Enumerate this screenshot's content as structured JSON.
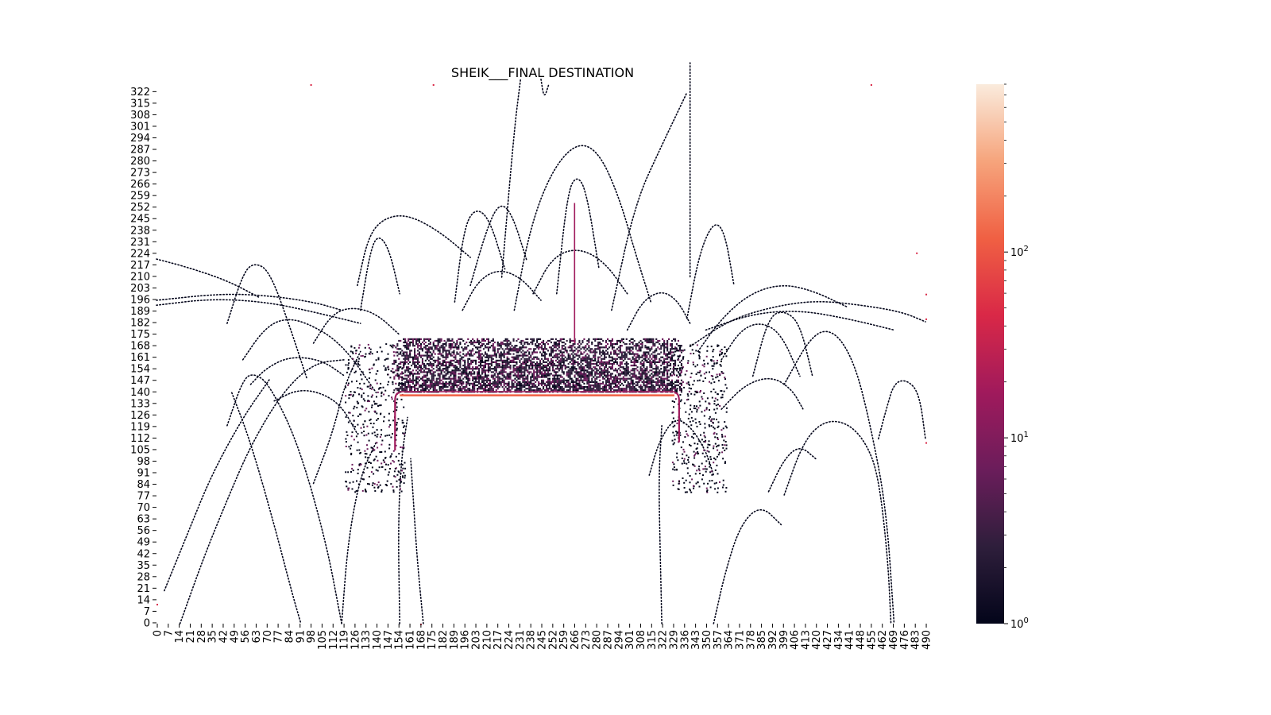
{
  "chart_data": {
    "type": "heatmap",
    "title": "SHEIK___FINAL DESTINATION",
    "x_tick_labels": [
      "0",
      "7",
      "14",
      "21",
      "28",
      "35",
      "42",
      "49",
      "56",
      "63",
      "70",
      "77",
      "84",
      "91",
      "98",
      "105",
      "112",
      "119",
      "126",
      "133",
      "140",
      "147",
      "154",
      "161",
      "168",
      "175",
      "182",
      "189",
      "196",
      "203",
      "210",
      "217",
      "224",
      "231",
      "238",
      "245",
      "252",
      "259",
      "266",
      "273",
      "280",
      "287",
      "294",
      "301",
      "308",
      "315",
      "322",
      "329",
      "336",
      "343",
      "350",
      "357",
      "364",
      "371",
      "378",
      "385",
      "392",
      "399",
      "406",
      "413",
      "420",
      "427",
      "434",
      "441",
      "448",
      "455",
      "462",
      "469",
      "476",
      "483",
      "490"
    ],
    "y_tick_labels": [
      "0",
      "7",
      "14",
      "21",
      "28",
      "35",
      "42",
      "49",
      "56",
      "63",
      "70",
      "77",
      "84",
      "91",
      "98",
      "105",
      "112",
      "119",
      "126",
      "133",
      "140",
      "147",
      "154",
      "161",
      "168",
      "175",
      "182",
      "189",
      "196",
      "203",
      "210",
      "217",
      "224",
      "231",
      "238",
      "245",
      "252",
      "259",
      "266",
      "273",
      "280",
      "287",
      "294",
      "301",
      "308",
      "315",
      "322"
    ],
    "xlim": [
      0,
      492
    ],
    "ylim": [
      0,
      327
    ],
    "colorbar": {
      "scale": "log",
      "range": [
        1,
        800
      ],
      "tick_labels": [
        {
          "base": "10",
          "exp": "0",
          "value": 1
        },
        {
          "base": "10",
          "exp": "1",
          "value": 10
        },
        {
          "base": "10",
          "exp": "2",
          "value": 100
        }
      ],
      "colors": [
        "#03051a",
        "#2e1e3b",
        "#6b1d5b",
        "#a01a5c",
        "#d92847",
        "#f06043",
        "#f6a47c",
        "#faebdd"
      ]
    },
    "platform": {
      "x_start": 152,
      "x_end": 333,
      "y_top": 140,
      "edge_count": 40
    },
    "dense_region": {
      "x_start": 150,
      "x_end": 335,
      "y_start": 140,
      "y_end": 172
    },
    "trajectories": [
      {
        "pts": [
          [
            0,
            196
          ],
          [
            40,
            200
          ],
          [
            70,
            199
          ],
          [
            100,
            195
          ],
          [
            118,
            190
          ]
        ]
      },
      {
        "pts": [
          [
            0,
            193
          ],
          [
            35,
            197
          ],
          [
            70,
            195
          ],
          [
            100,
            189
          ],
          [
            130,
            182
          ]
        ]
      },
      {
        "pts": [
          [
            0,
            221
          ],
          [
            20,
            216
          ],
          [
            45,
            208
          ],
          [
            65,
            198
          ]
        ]
      },
      {
        "pts": [
          [
            45,
            182
          ],
          [
            55,
            212
          ],
          [
            62,
            219
          ],
          [
            72,
            214
          ],
          [
            85,
            180
          ],
          [
            96,
            148
          ]
        ]
      },
      {
        "pts": [
          [
            55,
            160
          ],
          [
            68,
            178
          ],
          [
            80,
            185
          ],
          [
            95,
            183
          ],
          [
            118,
            170
          ],
          [
            140,
            140
          ]
        ]
      },
      {
        "pts": [
          [
            60,
            145
          ],
          [
            70,
            155
          ],
          [
            85,
            162
          ],
          [
            105,
            160
          ],
          [
            120,
            150
          ]
        ]
      },
      {
        "pts": [
          [
            45,
            120
          ],
          [
            55,
            148
          ],
          [
            62,
            152
          ],
          [
            72,
            145
          ],
          [
            90,
            110
          ],
          [
            108,
            50
          ],
          [
            118,
            0
          ]
        ]
      },
      {
        "pts": [
          [
            75,
            135
          ],
          [
            90,
            142
          ],
          [
            105,
            140
          ],
          [
            118,
            132
          ],
          [
            128,
            115
          ]
        ]
      },
      {
        "pts": [
          [
            130,
            190
          ],
          [
            136,
            225
          ],
          [
            141,
            236
          ],
          [
            148,
            228
          ],
          [
            155,
            200
          ]
        ]
      },
      {
        "pts": [
          [
            128,
            205
          ],
          [
            135,
            235
          ],
          [
            145,
            246
          ],
          [
            160,
            248
          ],
          [
            180,
            238
          ],
          [
            200,
            222
          ]
        ]
      },
      {
        "pts": [
          [
            100,
            170
          ],
          [
            112,
            188
          ],
          [
            125,
            192
          ],
          [
            140,
            188
          ],
          [
            155,
            175
          ]
        ]
      },
      {
        "pts": [
          [
            15,
            0
          ],
          [
            30,
            40
          ],
          [
            45,
            75
          ],
          [
            60,
            108
          ],
          [
            80,
            140
          ],
          [
            100,
            158
          ],
          [
            120,
            160
          ]
        ]
      },
      {
        "pts": [
          [
            5,
            20
          ],
          [
            20,
            55
          ],
          [
            35,
            90
          ],
          [
            55,
            125
          ],
          [
            72,
            148
          ]
        ]
      },
      {
        "pts": [
          [
            48,
            140
          ],
          [
            60,
            110
          ],
          [
            75,
            60
          ],
          [
            86,
            20
          ],
          [
            92,
            0
          ]
        ]
      },
      {
        "pts": [
          [
            100,
            85
          ],
          [
            112,
            115
          ],
          [
            120,
            145
          ],
          [
            130,
            165
          ]
        ]
      },
      {
        "pts": [
          [
            118,
            0
          ],
          [
            122,
            50
          ],
          [
            130,
            90
          ],
          [
            140,
            110
          ]
        ]
      },
      {
        "pts": [
          [
            155,
            0
          ],
          [
            154,
            60
          ],
          [
            156,
            100
          ],
          [
            160,
            125
          ]
        ]
      },
      {
        "pts": [
          [
            170,
            0
          ],
          [
            166,
            40
          ],
          [
            164,
            70
          ],
          [
            162,
            100
          ]
        ]
      },
      {
        "pts": [
          [
            190,
            195
          ],
          [
            196,
            240
          ],
          [
            203,
            252
          ],
          [
            212,
            246
          ],
          [
            222,
            215
          ]
        ]
      },
      {
        "pts": [
          [
            200,
            205
          ],
          [
            210,
            238
          ],
          [
            218,
            255
          ],
          [
            226,
            250
          ],
          [
            236,
            220
          ]
        ]
      },
      {
        "pts": [
          [
            220,
            210
          ],
          [
            228,
            300
          ],
          [
            232,
            330
          ]
        ]
      },
      {
        "pts": [
          [
            245,
            330
          ],
          [
            247,
            318
          ],
          [
            250,
            327
          ]
        ]
      },
      {
        "pts": [
          [
            228,
            190
          ],
          [
            238,
            240
          ],
          [
            252,
            275
          ],
          [
            268,
            292
          ],
          [
            282,
            286
          ],
          [
            295,
            258
          ],
          [
            305,
            225
          ],
          [
            315,
            195
          ]
        ]
      },
      {
        "pts": [
          [
            255,
            200
          ],
          [
            262,
            262
          ],
          [
            268,
            272
          ],
          [
            274,
            262
          ],
          [
            282,
            215
          ]
        ]
      },
      {
        "pts": [
          [
            195,
            190
          ],
          [
            205,
            208
          ],
          [
            218,
            215
          ],
          [
            232,
            210
          ],
          [
            245,
            196
          ]
        ]
      },
      {
        "pts": [
          [
            240,
            200
          ],
          [
            252,
            222
          ],
          [
            268,
            228
          ],
          [
            285,
            220
          ],
          [
            300,
            200
          ]
        ]
      },
      {
        "pts": [
          [
            290,
            190
          ],
          [
            305,
            255
          ],
          [
            322,
            290
          ],
          [
            338,
            322
          ]
        ]
      },
      {
        "pts": [
          [
            300,
            178
          ],
          [
            310,
            196
          ],
          [
            322,
            202
          ],
          [
            332,
            196
          ],
          [
            340,
            182
          ]
        ]
      },
      {
        "pts": [
          [
            338,
            185
          ],
          [
            346,
            225
          ],
          [
            355,
            244
          ],
          [
            362,
            238
          ],
          [
            368,
            205
          ]
        ]
      },
      {
        "pts": [
          [
            345,
            165
          ],
          [
            360,
            185
          ],
          [
            378,
            200
          ],
          [
            398,
            206
          ],
          [
            418,
            202
          ],
          [
            440,
            192
          ]
        ]
      },
      {
        "pts": [
          [
            340,
            168
          ],
          [
            365,
            184
          ],
          [
            392,
            192
          ],
          [
            420,
            196
          ],
          [
            450,
            193
          ],
          [
            475,
            189
          ],
          [
            490,
            183
          ]
        ]
      },
      {
        "pts": [
          [
            350,
            178
          ],
          [
            380,
            188
          ],
          [
            410,
            190
          ],
          [
            440,
            185
          ],
          [
            470,
            178
          ]
        ]
      },
      {
        "pts": [
          [
            380,
            150
          ],
          [
            390,
            186
          ],
          [
            400,
            190
          ],
          [
            410,
            182
          ],
          [
            418,
            150
          ]
        ]
      },
      {
        "pts": [
          [
            360,
            160
          ],
          [
            372,
            178
          ],
          [
            385,
            183
          ],
          [
            398,
            176
          ],
          [
            410,
            150
          ]
        ]
      },
      {
        "pts": [
          [
            400,
            145
          ],
          [
            418,
            176
          ],
          [
            432,
            178
          ],
          [
            445,
            158
          ],
          [
            455,
            120
          ],
          [
            465,
            70
          ],
          [
            470,
            0
          ]
        ]
      },
      {
        "pts": [
          [
            360,
            130
          ],
          [
            375,
            145
          ],
          [
            392,
            150
          ],
          [
            405,
            142
          ],
          [
            412,
            130
          ]
        ]
      },
      {
        "pts": [
          [
            400,
            78
          ],
          [
            412,
            110
          ],
          [
            425,
            123
          ],
          [
            440,
            122
          ],
          [
            452,
            110
          ],
          [
            460,
            90
          ],
          [
            466,
            40
          ],
          [
            468,
            0
          ]
        ]
      },
      {
        "pts": [
          [
            390,
            80
          ],
          [
            400,
            100
          ],
          [
            410,
            108
          ],
          [
            420,
            100
          ]
        ]
      },
      {
        "pts": [
          [
            460,
            112
          ],
          [
            465,
            130
          ],
          [
            470,
            146
          ],
          [
            478,
            148
          ],
          [
            486,
            140
          ],
          [
            490,
            112
          ]
        ]
      },
      {
        "pts": [
          [
            355,
            0
          ],
          [
            362,
            30
          ],
          [
            372,
            60
          ],
          [
            385,
            72
          ],
          [
            398,
            60
          ]
        ]
      },
      {
        "pts": [
          [
            322,
            0
          ],
          [
            321,
            40
          ],
          [
            320,
            90
          ],
          [
            322,
            120
          ]
        ]
      },
      {
        "pts": [
          [
            340,
            340
          ],
          [
            340,
            210
          ]
        ]
      },
      {
        "pts": [
          [
            314,
            90
          ],
          [
            320,
            110
          ],
          [
            330,
            125
          ],
          [
            340,
            120
          ],
          [
            350,
            105
          ],
          [
            355,
            90
          ]
        ]
      }
    ]
  }
}
